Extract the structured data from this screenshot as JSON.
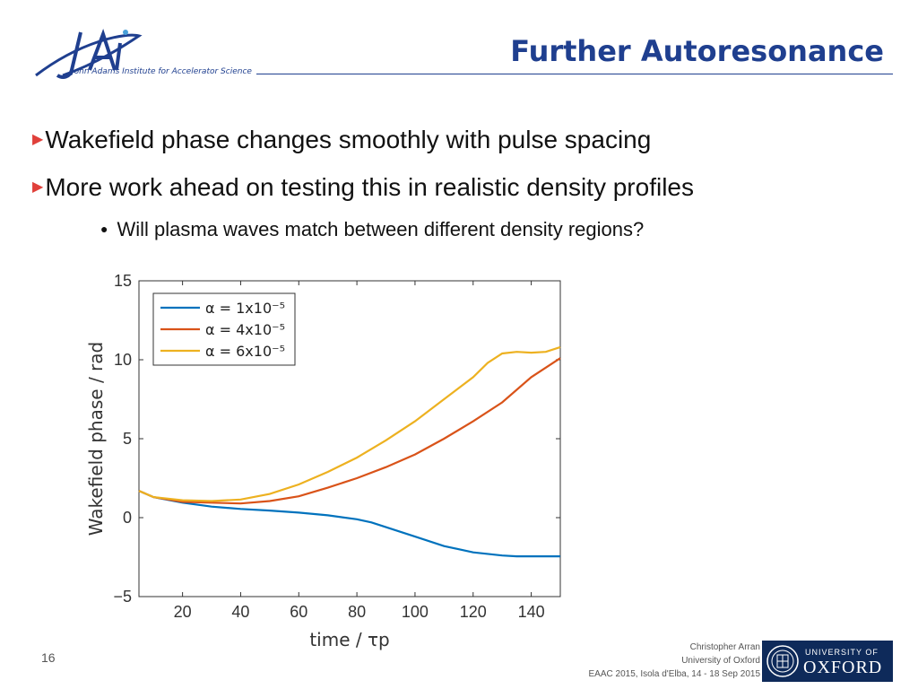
{
  "header": {
    "logo_sub": "John Adams Institute for Accelerator Science",
    "title": "Further Autoresonance"
  },
  "bullets": [
    "Wakefield phase changes smoothly with pulse spacing",
    "More work ahead on testing this in realistic density profiles"
  ],
  "sub_bullets": [
    "Will plasma waves match between different density regions?"
  ],
  "chart_data": {
    "type": "line",
    "xlabel": "time / τp",
    "ylabel": "Wakefield phase / rad",
    "xlim": [
      5,
      150
    ],
    "ylim": [
      -5,
      15
    ],
    "xticks": [
      20,
      40,
      60,
      80,
      100,
      120,
      140
    ],
    "yticks": [
      -5,
      0,
      5,
      10,
      15
    ],
    "legend_position": "top-left",
    "grid": false,
    "series": [
      {
        "name": "α = 1x10⁻⁵",
        "color": "#0072BD",
        "x": [
          5,
          10,
          20,
          30,
          40,
          50,
          60,
          70,
          80,
          85,
          90,
          95,
          100,
          110,
          120,
          130,
          135,
          140,
          150
        ],
        "y": [
          1.7,
          1.3,
          0.95,
          0.7,
          0.55,
          0.45,
          0.32,
          0.15,
          -0.1,
          -0.3,
          -0.6,
          -0.9,
          -1.2,
          -1.8,
          -2.2,
          -2.4,
          -2.45,
          -2.45,
          -2.45
        ]
      },
      {
        "name": "α = 4x10⁻⁵",
        "color": "#D95319",
        "x": [
          5,
          10,
          20,
          30,
          40,
          50,
          60,
          70,
          80,
          90,
          100,
          110,
          120,
          130,
          140,
          150
        ],
        "y": [
          1.7,
          1.3,
          1.0,
          0.95,
          0.9,
          1.05,
          1.35,
          1.9,
          2.5,
          3.2,
          4.0,
          5.0,
          6.1,
          7.3,
          8.9,
          10.1
        ]
      },
      {
        "name": "α = 6x10⁻⁵",
        "color": "#EDB120",
        "x": [
          5,
          10,
          20,
          30,
          40,
          50,
          60,
          70,
          80,
          90,
          100,
          110,
          120,
          125,
          130,
          135,
          140,
          145,
          150
        ],
        "y": [
          1.7,
          1.3,
          1.1,
          1.05,
          1.15,
          1.5,
          2.1,
          2.9,
          3.8,
          4.9,
          6.1,
          7.5,
          8.9,
          9.8,
          10.4,
          10.5,
          10.45,
          10.5,
          10.8
        ]
      }
    ]
  },
  "footer": {
    "page": "16",
    "author": "Christopher Arran",
    "affiliation": "University of Oxford",
    "event": "EAAC 2015, Isola d'Elba, 14 - 18 Sep 2015"
  },
  "oxford": {
    "top": "UNIVERSITY OF",
    "main": "OXFORD"
  }
}
